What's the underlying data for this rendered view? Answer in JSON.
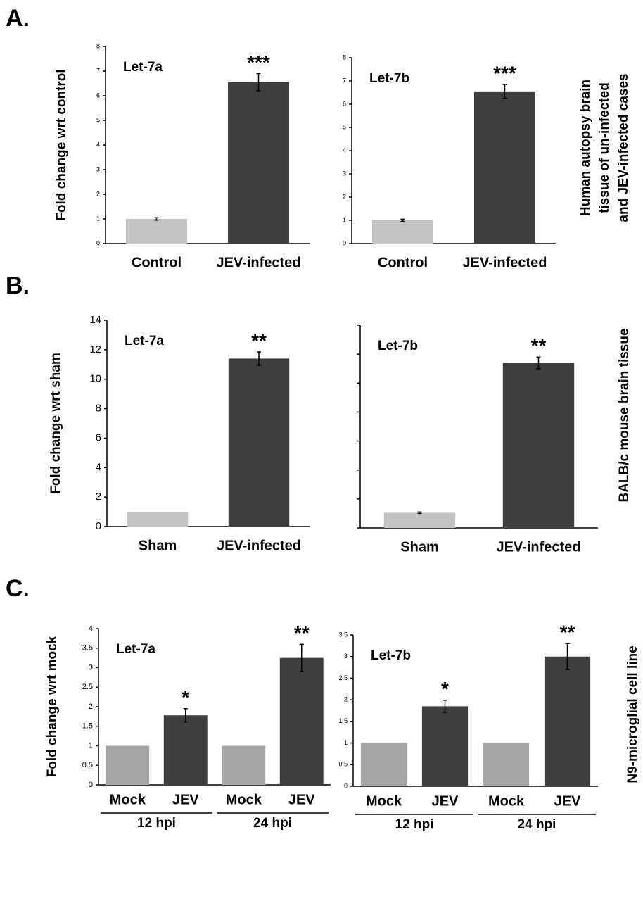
{
  "panels": [
    {
      "label": "A.",
      "side_text": [
        "Human autopsy brain",
        "tissue of un-infected",
        "and JEV-infected cases"
      ]
    },
    {
      "label": "B.",
      "side_text": [
        "BALB/c mouse brain tissue"
      ]
    },
    {
      "label": "C.",
      "side_text": [
        "N9-microglial cell line"
      ]
    }
  ],
  "chart_data": [
    {
      "type": "bar",
      "annotation": "Let-7a",
      "ylabel": "Fold change wrt control",
      "categories": [
        "Control",
        "JEV-infected"
      ],
      "values": [
        1.0,
        6.55
      ],
      "errors": [
        0.05,
        0.35
      ],
      "significance": [
        null,
        "***"
      ],
      "colors": [
        "#c3c3c3",
        "#3d3f3f"
      ],
      "ylim": [
        0,
        8
      ],
      "yticks": [
        0,
        1,
        2,
        3,
        4,
        5,
        6,
        7,
        8
      ],
      "ytick_labels": true
    },
    {
      "type": "bar",
      "annotation": "Let-7b",
      "categories": [
        "Control",
        "JEV-infected"
      ],
      "values": [
        1.0,
        6.55
      ],
      "errors": [
        0.05,
        0.3
      ],
      "significance": [
        null,
        "***"
      ],
      "colors": [
        "#c3c3c3",
        "#3d3f3f"
      ],
      "ylim": [
        0,
        8
      ],
      "yticks": [
        0,
        1,
        2,
        3,
        4,
        5,
        6,
        7,
        8
      ],
      "ytick_labels": true
    },
    {
      "type": "bar",
      "annotation": "Let-7a",
      "ylabel": "Fold change wrt sham",
      "categories": [
        "Sham",
        "JEV-infected"
      ],
      "values": [
        1.0,
        11.4
      ],
      "errors": [
        null,
        0.45
      ],
      "significance": [
        null,
        "**"
      ],
      "colors": [
        "#c3c3c3",
        "#3d3f3f"
      ],
      "ylim": [
        0,
        14
      ],
      "yticks": [
        0,
        2,
        4,
        6,
        8,
        10,
        12,
        14
      ],
      "ytick_labels": true
    },
    {
      "type": "bar",
      "annotation": "Let-7b",
      "categories": [
        "Sham",
        "JEV-infected"
      ],
      "values": [
        1.05,
        11.4
      ],
      "errors": [
        0.05,
        0.4
      ],
      "significance": [
        null,
        "**"
      ],
      "colors": [
        "#c3c3c3",
        "#3d3f3f"
      ],
      "ylim": [
        0,
        14
      ],
      "yticks": [
        0,
        2,
        4,
        6,
        8,
        10,
        12,
        14
      ],
      "ytick_labels": false
    },
    {
      "type": "bar",
      "annotation": "Let-7a",
      "ylabel": "Fold change wrt mock",
      "categories": [
        "Mock",
        "JEV",
        "Mock",
        "JEV"
      ],
      "group_labels": [
        "12 hpi",
        "24 hpi"
      ],
      "values": [
        1,
        1.78,
        1,
        3.25
      ],
      "errors": [
        null,
        0.17,
        null,
        0.35
      ],
      "significance": [
        null,
        "*",
        null,
        "**"
      ],
      "colors": [
        "#a6a6a6",
        "#3d3f3f",
        "#a6a6a6",
        "#3d3f3f"
      ],
      "ylim": [
        0,
        4
      ],
      "yticks": [
        0,
        0.5,
        1,
        1.5,
        2,
        2.5,
        3,
        3.5,
        4
      ],
      "ytick_labels": true
    },
    {
      "type": "bar",
      "annotation": "Let-7b",
      "categories": [
        "Mock",
        "JEV",
        "Mock",
        "JEV"
      ],
      "group_labels": [
        "12 hpi",
        "24 hpi"
      ],
      "values": [
        1,
        1.85,
        1,
        3.0
      ],
      "errors": [
        null,
        0.14,
        null,
        0.3
      ],
      "significance": [
        null,
        "*",
        null,
        "**"
      ],
      "colors": [
        "#a6a6a6",
        "#3d3f3f",
        "#a6a6a6",
        "#3d3f3f"
      ],
      "ylim": [
        0,
        3.5
      ],
      "yticks": [
        0,
        0.5,
        1,
        1.5,
        2,
        2.5,
        3,
        3.5
      ],
      "ytick_labels": true
    }
  ]
}
